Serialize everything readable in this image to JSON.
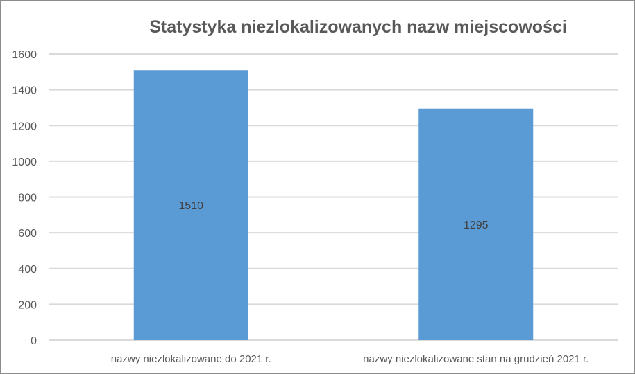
{
  "chart_data": {
    "type": "bar",
    "title": "Statystyka niezlokalizowanych nazw miejscowości",
    "categories": [
      "nazwy niezlokalizowane do 2021 r.",
      "nazwy niezlokalizowane stan na grudzień 2021 r."
    ],
    "values": [
      1510,
      1295
    ],
    "data_labels": [
      "1510",
      "1295"
    ],
    "xlabel": "",
    "ylabel": "",
    "ylim": [
      0,
      1600
    ],
    "yticks": [
      "0",
      "200",
      "400",
      "600",
      "800",
      "1000",
      "1200",
      "1400",
      "1600"
    ],
    "grid": true,
    "legend": "none",
    "colors": {
      "bar": "#5b9bd5",
      "grid": "#d9d9d9",
      "text": "#595959",
      "title": "#595959"
    }
  }
}
